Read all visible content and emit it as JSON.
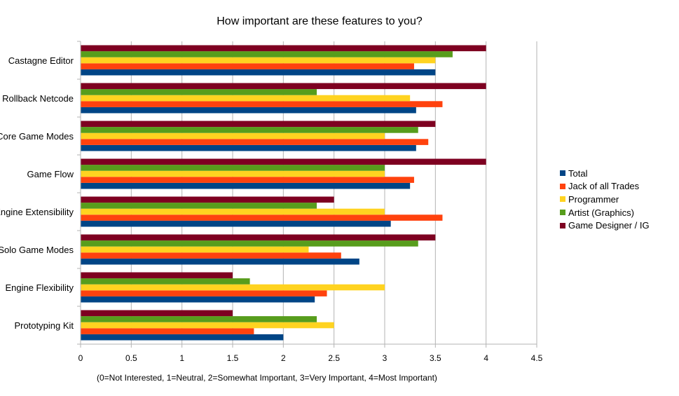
{
  "chart_data": {
    "type": "bar",
    "orientation": "horizontal",
    "title": "How important are these features to you?",
    "xlabel": "(0=Not Interested, 1=Neutral, 2=Somewhat Important, 3=Very Important, 4=Most Important)",
    "ylabel": "",
    "xlim": [
      0,
      4.5
    ],
    "xticks": [
      "0",
      "0.5",
      "1",
      "1.5",
      "2",
      "2.5",
      "3",
      "3.5",
      "4",
      "4.5"
    ],
    "grid": true,
    "legend_position": "right",
    "categories": [
      "Castagne Editor",
      "Rollback Netcode",
      "Core Game Modes",
      "Game Flow",
      "Engine Extensibility",
      "Solo Game Modes",
      "Engine Flexibility",
      "Prototyping Kit"
    ],
    "series": [
      {
        "name": "Total",
        "color": "#004586",
        "values": [
          3.5,
          3.31,
          3.31,
          3.25,
          3.06,
          2.75,
          2.31,
          2.0
        ]
      },
      {
        "name": "Jack of all Trades",
        "color": "#ff420e",
        "values": [
          3.29,
          3.57,
          3.43,
          3.29,
          3.57,
          2.57,
          2.43,
          1.71
        ]
      },
      {
        "name": "Programmer",
        "color": "#ffd320",
        "values": [
          3.5,
          3.25,
          3.0,
          3.0,
          3.0,
          2.25,
          3.0,
          2.5
        ]
      },
      {
        "name": "Artist (Graphics)",
        "color": "#579d1c",
        "values": [
          3.67,
          2.33,
          3.33,
          3.0,
          2.33,
          3.33,
          1.67,
          2.33
        ]
      },
      {
        "name": "Game Designer / IG",
        "color": "#7e0021",
        "values": [
          4.0,
          4.0,
          3.5,
          4.0,
          2.5,
          3.5,
          1.5,
          1.5
        ]
      }
    ]
  }
}
